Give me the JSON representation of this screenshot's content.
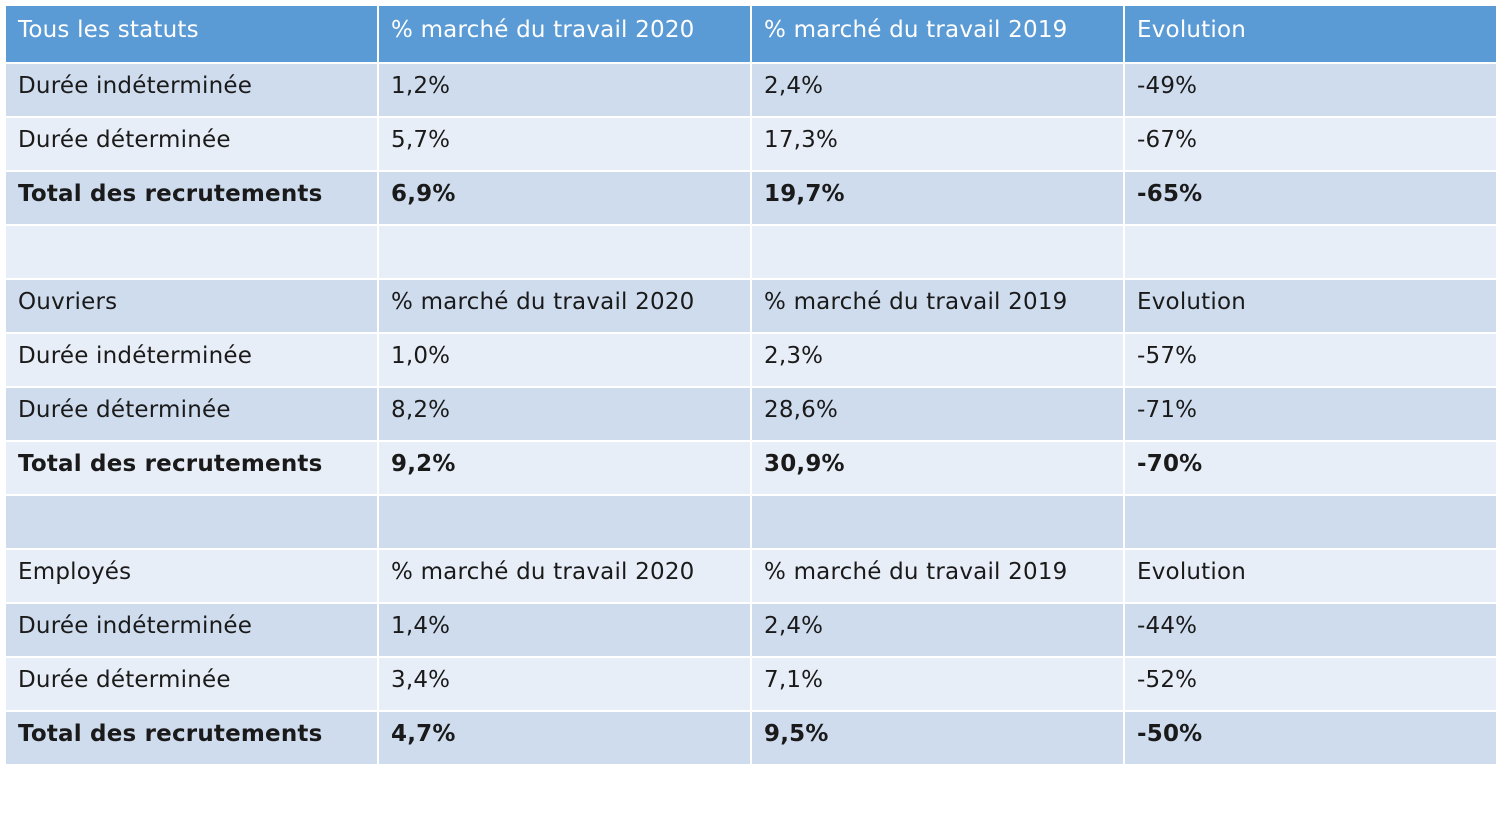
{
  "header": {
    "col1": "Tous les statuts",
    "col2": "% marché du travail 2020",
    "col3": "% marché du travail 2019",
    "col4": "Evolution"
  },
  "sections": [
    {
      "rows": [
        {
          "label": "Durée indéterminée",
          "v2020": "1,2%",
          "v2019": "2,4%",
          "evo": "-49%"
        },
        {
          "label": "Durée déterminée",
          "v2020": "5,7%",
          "v2019": "17,3%",
          "evo": "-67%"
        },
        {
          "label": "Total des recrutements",
          "v2020": "6,9%",
          "v2019": "19,7%",
          "evo": "-65%"
        }
      ]
    },
    {
      "heading": {
        "col1": "Ouvriers",
        "col2": "% marché du travail 2020",
        "col3": "% marché du travail 2019",
        "col4": "Evolution"
      },
      "rows": [
        {
          "label": "Durée indéterminée",
          "v2020": "1,0%",
          "v2019": "2,3%",
          "evo": "-57%"
        },
        {
          "label": "Durée déterminée",
          "v2020": "8,2%",
          "v2019": "28,6%",
          "evo": "-71%"
        },
        {
          "label": "Total des recrutements",
          "v2020": "9,2%",
          "v2019": "30,9%",
          "evo": "-70%"
        }
      ]
    },
    {
      "heading": {
        "col1": "Employés",
        "col2": "% marché du travail 2020",
        "col3": "% marché du travail 2019",
        "col4": "Evolution"
      },
      "rows": [
        {
          "label": "Durée indéterminée",
          "v2020": "1,4%",
          "v2019": "2,4%",
          "evo": "-44%"
        },
        {
          "label": "Durée déterminée",
          "v2020": "3,4%",
          "v2019": "7,1%",
          "evo": "-52%"
        },
        {
          "label": "Total des recrutements",
          "v2020": "4,7%",
          "v2019": "9,5%",
          "evo": "-50%"
        }
      ]
    }
  ],
  "colors": {
    "header_bg": "#5b9bd5",
    "band_dark": "#cfdcee",
    "band_light": "#e8eef7"
  }
}
